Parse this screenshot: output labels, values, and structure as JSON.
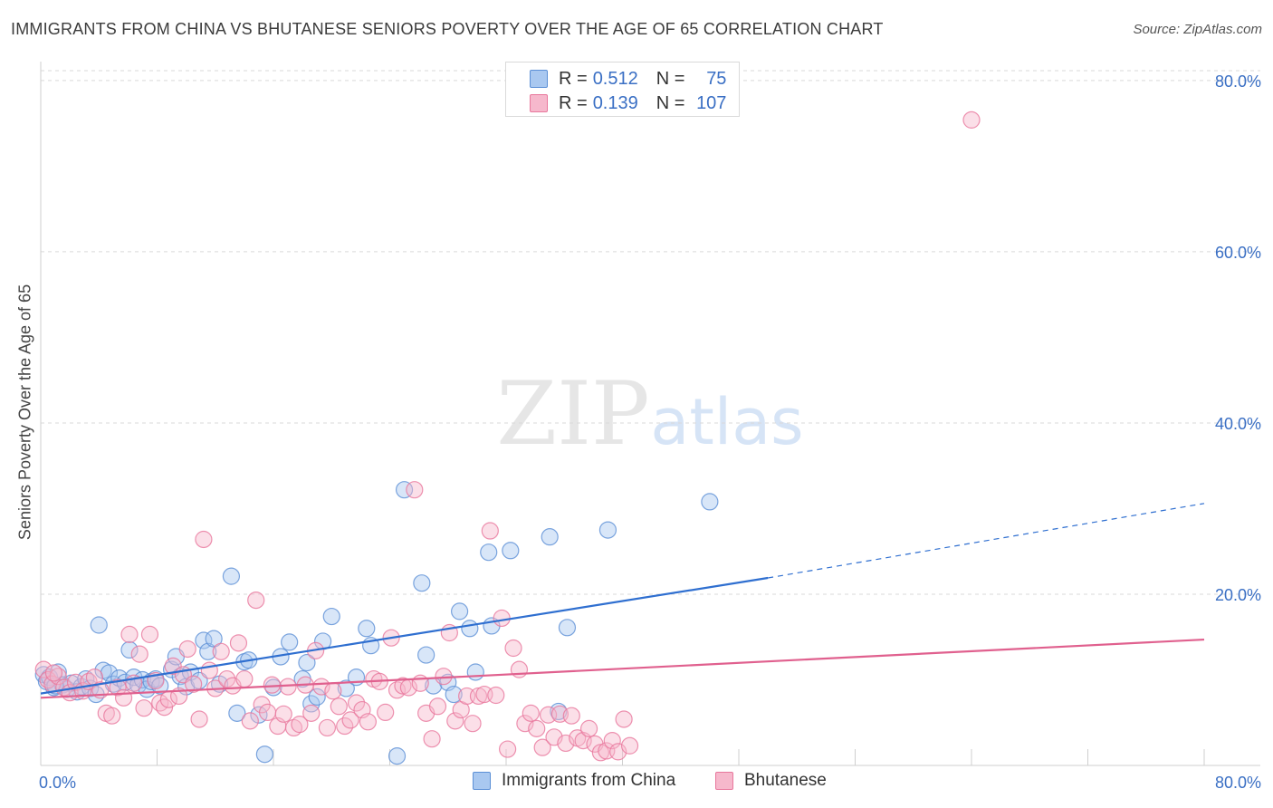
{
  "title": "IMMIGRANTS FROM CHINA VS BHUTANESE SENIORS POVERTY OVER THE AGE OF 65 CORRELATION CHART",
  "source": "Source: ZipAtlas.com",
  "watermark": {
    "zip": "ZIP",
    "atlas": "atlas"
  },
  "colors": {
    "china_fill": "#a9c8f0",
    "china_stroke": "#5b8fd6",
    "china_line": "#2f6fd0",
    "bhutan_fill": "#f6b8cc",
    "bhutan_stroke": "#e8779c",
    "bhutan_line": "#e0608e",
    "tick_label": "#3a6fc4",
    "grid": "#d9d9d9"
  },
  "legend": {
    "rows": [
      {
        "r_label": "R =",
        "r_value": "0.512",
        "n_label": "N =",
        "n_value": "75"
      },
      {
        "r_label": "R =",
        "r_value": "0.139",
        "n_label": "N =",
        "n_value": "107"
      }
    ]
  },
  "bottom_legend": {
    "china": "Immigrants from China",
    "bhutan": "Bhutanese"
  },
  "chart_data": {
    "type": "scatter",
    "ylabel": "Seniors Poverty Over the Age of 65",
    "xlim": [
      0,
      80
    ],
    "ylim": [
      0,
      82
    ],
    "x_tick_labels": [
      "0.0%",
      "80.0%"
    ],
    "y_ticks": [
      {
        "value": 20,
        "label": "20.0%"
      },
      {
        "value": 40,
        "label": "40.0%"
      },
      {
        "value": 60,
        "label": "60.0%"
      },
      {
        "value": 80,
        "label": "80.0%"
      }
    ],
    "grid": true,
    "series": [
      {
        "name": "Immigrants from China",
        "trend": {
          "x0": 0,
          "y0": 8.4,
          "x1": 50,
          "y1": 21.9,
          "dashed_to_x": 80,
          "dashed_y": 30.6
        },
        "points": [
          [
            0.2,
            10.6
          ],
          [
            0.4,
            9.8
          ],
          [
            0.6,
            10.3
          ],
          [
            0.9,
            9.1
          ],
          [
            1.2,
            10.9
          ],
          [
            1.5,
            9.4
          ],
          [
            1.8,
            8.9
          ],
          [
            2.1,
            9.6
          ],
          [
            2.5,
            8.6
          ],
          [
            2.8,
            9.2
          ],
          [
            3.1,
            10.1
          ],
          [
            3.4,
            9.0
          ],
          [
            3.8,
            8.3
          ],
          [
            4.0,
            16.4
          ],
          [
            4.3,
            11.1
          ],
          [
            4.7,
            10.8
          ],
          [
            5.0,
            9.5
          ],
          [
            5.4,
            10.2
          ],
          [
            5.8,
            9.7
          ],
          [
            6.1,
            13.5
          ],
          [
            6.4,
            10.3
          ],
          [
            6.7,
            9.4
          ],
          [
            7.0,
            10.0
          ],
          [
            7.3,
            8.9
          ],
          [
            7.6,
            9.8
          ],
          [
            7.9,
            10.1
          ],
          [
            8.2,
            9.3
          ],
          [
            9.0,
            11.2
          ],
          [
            9.3,
            12.7
          ],
          [
            9.6,
            10.4
          ],
          [
            10.0,
            9.2
          ],
          [
            10.3,
            10.9
          ],
          [
            10.9,
            9.9
          ],
          [
            11.2,
            14.6
          ],
          [
            11.5,
            13.3
          ],
          [
            11.9,
            14.8
          ],
          [
            12.3,
            9.5
          ],
          [
            13.1,
            22.1
          ],
          [
            13.5,
            6.1
          ],
          [
            14.0,
            12.1
          ],
          [
            14.3,
            12.3
          ],
          [
            15.0,
            5.9
          ],
          [
            15.4,
            1.3
          ],
          [
            16.0,
            9.1
          ],
          [
            16.5,
            12.7
          ],
          [
            17.1,
            14.4
          ],
          [
            18.0,
            10.1
          ],
          [
            18.3,
            12.0
          ],
          [
            18.6,
            7.2
          ],
          [
            19.0,
            8.0
          ],
          [
            19.4,
            14.5
          ],
          [
            20.0,
            17.4
          ],
          [
            21.0,
            9.0
          ],
          [
            21.7,
            10.3
          ],
          [
            22.4,
            16.0
          ],
          [
            22.7,
            14.0
          ],
          [
            24.5,
            1.1
          ],
          [
            25.0,
            32.2
          ],
          [
            26.2,
            21.3
          ],
          [
            26.5,
            12.9
          ],
          [
            27.0,
            9.3
          ],
          [
            28.0,
            9.7
          ],
          [
            28.4,
            8.3
          ],
          [
            28.8,
            18.0
          ],
          [
            29.5,
            16.0
          ],
          [
            29.9,
            10.9
          ],
          [
            30.8,
            24.9
          ],
          [
            31.0,
            16.3
          ],
          [
            32.3,
            25.1
          ],
          [
            35.0,
            26.7
          ],
          [
            35.6,
            6.3
          ],
          [
            36.2,
            16.1
          ],
          [
            39.0,
            27.5
          ],
          [
            46.0,
            30.8
          ],
          [
            1.0,
            9.3
          ]
        ]
      },
      {
        "name": "Bhutanese",
        "trend": {
          "x0": 0,
          "y0": 7.9,
          "x1": 80,
          "y1": 14.7
        },
        "points": [
          [
            0.2,
            11.2
          ],
          [
            0.5,
            10.0
          ],
          [
            0.8,
            9.5
          ],
          [
            1.2,
            10.4
          ],
          [
            1.6,
            9.1
          ],
          [
            2.0,
            8.5
          ],
          [
            2.4,
            9.7
          ],
          [
            2.9,
            8.7
          ],
          [
            3.3,
            9.8
          ],
          [
            3.7,
            10.3
          ],
          [
            4.1,
            8.8
          ],
          [
            4.5,
            6.1
          ],
          [
            4.9,
            5.8
          ],
          [
            5.3,
            9.1
          ],
          [
            5.7,
            7.9
          ],
          [
            6.1,
            15.3
          ],
          [
            6.4,
            9.6
          ],
          [
            6.8,
            13.0
          ],
          [
            7.1,
            6.7
          ],
          [
            7.5,
            15.3
          ],
          [
            7.9,
            9.9
          ],
          [
            8.2,
            7.3
          ],
          [
            8.5,
            6.8
          ],
          [
            8.8,
            7.7
          ],
          [
            9.1,
            11.6
          ],
          [
            9.5,
            8.1
          ],
          [
            9.8,
            10.6
          ],
          [
            10.1,
            13.6
          ],
          [
            10.5,
            9.5
          ],
          [
            10.9,
            5.4
          ],
          [
            11.2,
            26.4
          ],
          [
            11.6,
            11.1
          ],
          [
            12.0,
            9.0
          ],
          [
            12.4,
            13.3
          ],
          [
            12.8,
            10.1
          ],
          [
            13.2,
            9.3
          ],
          [
            13.6,
            14.3
          ],
          [
            14.0,
            10.1
          ],
          [
            14.4,
            5.2
          ],
          [
            14.8,
            19.3
          ],
          [
            15.2,
            7.1
          ],
          [
            15.6,
            6.2
          ],
          [
            15.9,
            9.4
          ],
          [
            16.3,
            4.6
          ],
          [
            16.7,
            6.0
          ],
          [
            17.0,
            9.2
          ],
          [
            17.4,
            4.4
          ],
          [
            17.8,
            4.8
          ],
          [
            18.2,
            9.4
          ],
          [
            18.6,
            6.1
          ],
          [
            18.9,
            13.4
          ],
          [
            19.3,
            9.2
          ],
          [
            19.7,
            4.4
          ],
          [
            20.1,
            8.7
          ],
          [
            20.5,
            6.9
          ],
          [
            20.9,
            4.6
          ],
          [
            21.3,
            5.3
          ],
          [
            21.7,
            7.3
          ],
          [
            22.1,
            6.5
          ],
          [
            22.5,
            5.1
          ],
          [
            22.9,
            10.1
          ],
          [
            23.3,
            9.8
          ],
          [
            23.7,
            6.2
          ],
          [
            24.1,
            14.9
          ],
          [
            24.5,
            8.8
          ],
          [
            24.9,
            9.3
          ],
          [
            25.3,
            9.1
          ],
          [
            25.7,
            32.2
          ],
          [
            26.1,
            9.6
          ],
          [
            26.5,
            6.1
          ],
          [
            26.9,
            3.1
          ],
          [
            27.3,
            6.9
          ],
          [
            27.7,
            10.4
          ],
          [
            28.1,
            15.5
          ],
          [
            28.5,
            5.2
          ],
          [
            28.9,
            6.5
          ],
          [
            29.3,
            8.1
          ],
          [
            29.7,
            4.9
          ],
          [
            30.1,
            8.1
          ],
          [
            30.5,
            8.3
          ],
          [
            30.9,
            27.4
          ],
          [
            31.3,
            8.2
          ],
          [
            31.7,
            17.2
          ],
          [
            32.1,
            1.9
          ],
          [
            32.5,
            13.7
          ],
          [
            32.9,
            11.2
          ],
          [
            33.3,
            4.9
          ],
          [
            33.7,
            6.1
          ],
          [
            34.1,
            4.3
          ],
          [
            34.5,
            2.1
          ],
          [
            34.9,
            5.9
          ],
          [
            35.3,
            3.3
          ],
          [
            35.7,
            6.0
          ],
          [
            36.1,
            2.6
          ],
          [
            36.5,
            5.8
          ],
          [
            36.9,
            3.2
          ],
          [
            37.3,
            2.9
          ],
          [
            37.7,
            4.3
          ],
          [
            38.1,
            2.5
          ],
          [
            38.5,
            1.5
          ],
          [
            38.9,
            1.7
          ],
          [
            39.3,
            2.9
          ],
          [
            39.7,
            1.6
          ],
          [
            40.1,
            5.4
          ],
          [
            40.5,
            2.3
          ],
          [
            64.0,
            75.4
          ],
          [
            0.9,
            10.8
          ]
        ]
      }
    ]
  }
}
